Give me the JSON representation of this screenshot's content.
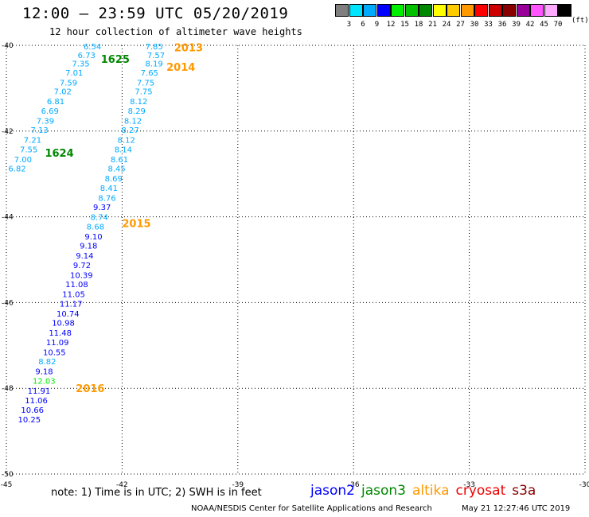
{
  "header": {
    "title": "12:00 – 23:59 UTC 05/20/2019",
    "subtitle": "12 hour collection of altimeter wave heights"
  },
  "color_scale": {
    "unit": "(ft)",
    "bins": [
      {
        "label": "3",
        "color": "#7f7f7f"
      },
      {
        "label": "6",
        "color": "#00e5ff"
      },
      {
        "label": "9",
        "color": "#00aaff"
      },
      {
        "label": "12",
        "color": "#0000ff"
      },
      {
        "label": "15",
        "color": "#00ee00"
      },
      {
        "label": "18",
        "color": "#00c000"
      },
      {
        "label": "21",
        "color": "#008800"
      },
      {
        "label": "24",
        "color": "#ffff00"
      },
      {
        "label": "27",
        "color": "#ffcc00"
      },
      {
        "label": "30",
        "color": "#ff9900"
      },
      {
        "label": "33",
        "color": "#ff0000"
      },
      {
        "label": "36",
        "color": "#cc0000"
      },
      {
        "label": "39",
        "color": "#880000"
      },
      {
        "label": "42",
        "color": "#990099"
      },
      {
        "label": "45",
        "color": "#ff55ff"
      },
      {
        "label": "70",
        "color": "#ffaaff"
      },
      {
        "label": "",
        "color": "#000000"
      }
    ]
  },
  "map": {
    "lon_ticks": [
      "-45",
      "-42",
      "-39",
      "-36",
      "-33",
      "-30"
    ],
    "lat_ticks": [
      "-40",
      "-42",
      "-44",
      "-46",
      "-48",
      "-50"
    ],
    "track_labels": [
      {
        "text": "2013",
        "lon": -40.65,
        "lat": -40.05,
        "color": "#ff9900"
      },
      {
        "text": "2014",
        "lon": -40.85,
        "lat": -40.5,
        "color": "#ff9900"
      },
      {
        "text": "1625",
        "lon": -42.55,
        "lat": -40.32,
        "color": "#008800"
      },
      {
        "text": "1624",
        "lon": -44.0,
        "lat": -42.5,
        "color": "#008800"
      },
      {
        "text": "2015",
        "lon": -42.0,
        "lat": -44.15,
        "color": "#ff9900"
      },
      {
        "text": "2016",
        "lon": -43.2,
        "lat": -48.0,
        "color": "#ff9900"
      }
    ],
    "observations": [
      {
        "v": "7.85",
        "lon": -41.4,
        "lat": -40.02,
        "c": "#00aaff"
      },
      {
        "v": "7.57",
        "lon": -41.35,
        "lat": -40.22,
        "c": "#00aaff"
      },
      {
        "v": "8.19",
        "lon": -41.4,
        "lat": -40.42,
        "c": "#00aaff"
      },
      {
        "v": "7.65",
        "lon": -41.52,
        "lat": -40.63,
        "c": "#00aaff"
      },
      {
        "v": "7.75",
        "lon": -41.62,
        "lat": -40.86,
        "c": "#00aaff"
      },
      {
        "v": "7.75",
        "lon": -41.67,
        "lat": -41.07,
        "c": "#00aaff"
      },
      {
        "v": "8.12",
        "lon": -41.8,
        "lat": -41.3,
        "c": "#00aaff"
      },
      {
        "v": "8.29",
        "lon": -41.85,
        "lat": -41.52,
        "c": "#00aaff"
      },
      {
        "v": "8.12",
        "lon": -41.95,
        "lat": -41.75,
        "c": "#00aaff"
      },
      {
        "v": "8.27",
        "lon": -42.02,
        "lat": -41.97,
        "c": "#00aaff"
      },
      {
        "v": "8.12",
        "lon": -42.12,
        "lat": -42.2,
        "c": "#00aaff"
      },
      {
        "v": "8.14",
        "lon": -42.2,
        "lat": -42.42,
        "c": "#00aaff"
      },
      {
        "v": "8.61",
        "lon": -42.3,
        "lat": -42.65,
        "c": "#00aaff"
      },
      {
        "v": "8.45",
        "lon": -42.37,
        "lat": -42.87,
        "c": "#00aaff"
      },
      {
        "v": "8.69",
        "lon": -42.45,
        "lat": -43.1,
        "c": "#00aaff"
      },
      {
        "v": "8.41",
        "lon": -42.57,
        "lat": -43.32,
        "c": "#00aaff"
      },
      {
        "v": "8.76",
        "lon": -42.62,
        "lat": -43.55,
        "c": "#00aaff"
      },
      {
        "v": "9.37",
        "lon": -42.75,
        "lat": -43.77,
        "c": "#0000ff"
      },
      {
        "v": "8.74",
        "lon": -42.82,
        "lat": -44.0,
        "c": "#00aaff"
      },
      {
        "v": "8.68",
        "lon": -42.92,
        "lat": -44.22,
        "c": "#00aaff"
      },
      {
        "v": "9.10",
        "lon": -42.97,
        "lat": -44.45,
        "c": "#0000ff"
      },
      {
        "v": "9.18",
        "lon": -43.1,
        "lat": -44.67,
        "c": "#0000ff"
      },
      {
        "v": "9.14",
        "lon": -43.2,
        "lat": -44.9,
        "c": "#0000ff"
      },
      {
        "v": "9.72",
        "lon": -43.27,
        "lat": -45.12,
        "c": "#0000ff"
      },
      {
        "v": "10.39",
        "lon": -43.35,
        "lat": -45.35,
        "c": "#0000ff"
      },
      {
        "v": "11.08",
        "lon": -43.47,
        "lat": -45.57,
        "c": "#0000ff"
      },
      {
        "v": "11.05",
        "lon": -43.55,
        "lat": -45.8,
        "c": "#0000ff"
      },
      {
        "v": "11.17",
        "lon": -43.62,
        "lat": -46.02,
        "c": "#0000ff"
      },
      {
        "v": "10.74",
        "lon": -43.7,
        "lat": -46.25,
        "c": "#0000ff"
      },
      {
        "v": "10.98",
        "lon": -43.82,
        "lat": -46.47,
        "c": "#0000ff"
      },
      {
        "v": "11.48",
        "lon": -43.9,
        "lat": -46.7,
        "c": "#0000ff"
      },
      {
        "v": "11.09",
        "lon": -43.97,
        "lat": -46.92,
        "c": "#0000ff"
      },
      {
        "v": "10.55",
        "lon": -44.05,
        "lat": -47.15,
        "c": "#0000ff"
      },
      {
        "v": "8.82",
        "lon": -44.17,
        "lat": -47.37,
        "c": "#00aaff"
      },
      {
        "v": "9.18",
        "lon": -44.25,
        "lat": -47.6,
        "c": "#0000ff"
      },
      {
        "v": "12.03",
        "lon": -44.32,
        "lat": -47.82,
        "c": "#00ee00"
      },
      {
        "v": "11.91",
        "lon": -44.45,
        "lat": -48.05,
        "c": "#0000ff"
      },
      {
        "v": "11.06",
        "lon": -44.52,
        "lat": -48.27,
        "c": "#0000ff"
      },
      {
        "v": "10.66",
        "lon": -44.62,
        "lat": -48.5,
        "c": "#0000ff"
      },
      {
        "v": "10.25",
        "lon": -44.7,
        "lat": -48.72,
        "c": "#0000ff"
      },
      {
        "v": "6.54",
        "lon": -43.0,
        "lat": -40.02,
        "c": "#00aaff"
      },
      {
        "v": "6.73",
        "lon": -43.15,
        "lat": -40.22,
        "c": "#00aaff"
      },
      {
        "v": "7.35",
        "lon": -43.3,
        "lat": -40.42,
        "c": "#00aaff"
      },
      {
        "v": "7.01",
        "lon": -43.47,
        "lat": -40.63,
        "c": "#00aaff"
      },
      {
        "v": "7.59",
        "lon": -43.62,
        "lat": -40.86,
        "c": "#00aaff"
      },
      {
        "v": "7.02",
        "lon": -43.77,
        "lat": -41.07,
        "c": "#00aaff"
      },
      {
        "v": "6.81",
        "lon": -43.95,
        "lat": -41.3,
        "c": "#00aaff"
      },
      {
        "v": "6.69",
        "lon": -44.1,
        "lat": -41.52,
        "c": "#00aaff"
      },
      {
        "v": "7.39",
        "lon": -44.22,
        "lat": -41.75,
        "c": "#00aaff"
      },
      {
        "v": "7.13",
        "lon": -44.37,
        "lat": -41.97,
        "c": "#00aaff"
      },
      {
        "v": "7.21",
        "lon": -44.55,
        "lat": -42.2,
        "c": "#00aaff"
      },
      {
        "v": "7.55",
        "lon": -44.65,
        "lat": -42.42,
        "c": "#00aaff"
      },
      {
        "v": "7.00",
        "lon": -44.8,
        "lat": -42.65,
        "c": "#00aaff"
      },
      {
        "v": "6.82",
        "lon": -44.95,
        "lat": -42.87,
        "c": "#00aaff"
      }
    ]
  },
  "footer": {
    "note": "note: 1) Time is in UTC; 2) SWH is in feet",
    "satellites": [
      {
        "name": "jason2",
        "color": "#0000ff"
      },
      {
        "name": "jason3",
        "color": "#008800"
      },
      {
        "name": "altika",
        "color": "#ff9900"
      },
      {
        "name": "cryosat",
        "color": "#ee0000"
      },
      {
        "name": "s3a",
        "color": "#880000"
      }
    ],
    "credit": "NOAA/NESDIS Center for Satellite Applications and Research",
    "timestamp": "May 21 12:27:46 UTC 2019"
  }
}
